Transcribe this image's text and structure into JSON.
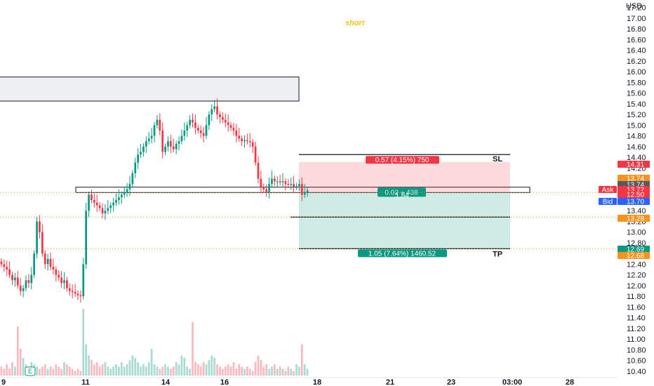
{
  "chart_data": {
    "type": "candlestick",
    "title": "short",
    "currency": "USD",
    "y_ticks": [
      "17.20",
      "17.00",
      "16.80",
      "16.60",
      "16.40",
      "16.20",
      "16.00",
      "15.80",
      "15.60",
      "15.40",
      "15.20",
      "15.00",
      "14.80",
      "14.60",
      "14.40",
      "14.20",
      "14.00",
      "13.80",
      "13.60",
      "13.40",
      "13.20",
      "13.00",
      "12.80",
      "12.60",
      "12.40",
      "12.20",
      "12.00",
      "11.80",
      "11.60",
      "11.40",
      "11.20",
      "11.00",
      "10.80",
      "10.60",
      "10.40"
    ],
    "ylim": [
      10.28,
      17.34
    ],
    "x_ticks": [
      "9",
      "11",
      "14",
      "16",
      "18",
      "21",
      "23",
      "03:00",
      "28"
    ],
    "price_tags": [
      {
        "value": "14.31",
        "color": "#f23645"
      },
      {
        "value": "13.74",
        "color": "#f7931a"
      },
      {
        "value": "13.74",
        "color": "#555b66"
      },
      {
        "value": "13.72",
        "color": "#f23645",
        "label": "Ask"
      },
      {
        "value": "12.50",
        "color": "#f23645"
      },
      {
        "value": "13.70",
        "color": "#2962ff",
        "label": "Bid"
      },
      {
        "value": "13.28",
        "color": "#f7931a"
      },
      {
        "value": "12.69",
        "color": "#089981"
      },
      {
        "value": "12.68",
        "color": "#f7931a"
      }
    ],
    "position": {
      "direction": "short",
      "entry": 13.74,
      "stop_loss": 14.31,
      "take_profit": 12.69,
      "stop_label": "SL",
      "target_label": "TP",
      "stop_text": "0.57 (4.15%) 750",
      "target_text": "1.05 (7.64%) 1460.52",
      "open_pl_text": "0.02",
      "open_pl_suffix": "438",
      "ratio_text": "1.84"
    },
    "horizontal_lines": [
      13.28
    ],
    "dotted_levels": [
      13.74,
      13.28,
      12.69
    ],
    "zones": [
      {
        "name": "supply",
        "low": 15.45,
        "high": 15.9
      },
      {
        "name": "entry",
        "low": 13.74,
        "high": 13.84
      }
    ],
    "series": [
      {
        "name": "price",
        "close": [
          12.4,
          12.35,
          12.3,
          12.2,
          12.1,
          12.15,
          12.0,
          11.9,
          11.95,
          12.1,
          12.05,
          12.2,
          12.6,
          13.2,
          13.0,
          12.6,
          12.4,
          12.5,
          12.35,
          12.3,
          12.2,
          12.15,
          12.05,
          12.1,
          11.95,
          11.9,
          11.88,
          11.85,
          11.82,
          11.8,
          12.4,
          13.4,
          13.7,
          13.6,
          13.55,
          13.5,
          13.45,
          13.35,
          13.4,
          13.45,
          13.5,
          13.55,
          13.6,
          13.65,
          13.7,
          13.75,
          13.8,
          13.9,
          14.1,
          14.3,
          14.45,
          14.5,
          14.6,
          14.7,
          14.75,
          14.8,
          15.0,
          15.1,
          14.9,
          14.5,
          14.6,
          14.7,
          14.6,
          14.55,
          14.65,
          14.7,
          14.8,
          14.9,
          15.0,
          15.1,
          15.05,
          14.95,
          14.9,
          14.85,
          14.8,
          15.0,
          15.2,
          15.3,
          15.35,
          15.2,
          15.15,
          15.1,
          15.05,
          15.0,
          14.95,
          14.9,
          14.8,
          14.75,
          14.7,
          14.72,
          14.7,
          14.68,
          14.6,
          14.3,
          14.0,
          13.85,
          13.8,
          13.75,
          13.9,
          14.0,
          13.95,
          13.95,
          13.93,
          13.95,
          13.9,
          13.88,
          13.9,
          13.85,
          13.86,
          13.9,
          13.7,
          13.75,
          13.78
        ]
      },
      {
        "name": "volume",
        "values": [
          4,
          3,
          5,
          3,
          6,
          4,
          22,
          12,
          8,
          5,
          4,
          6,
          5,
          4,
          3,
          4,
          5,
          3,
          4,
          3,
          5,
          4,
          3,
          6,
          5,
          4,
          3,
          2,
          3,
          2,
          30,
          14,
          9,
          7,
          5,
          6,
          4,
          5,
          6,
          4,
          3,
          4,
          5,
          4,
          6,
          4,
          5,
          7,
          9,
          8,
          6,
          4,
          5,
          4,
          6,
          12,
          5,
          4,
          3,
          4,
          5,
          4,
          3,
          4,
          6,
          5,
          9,
          8,
          4,
          3,
          24,
          6,
          5,
          4,
          6,
          5,
          7,
          9,
          8,
          5,
          4,
          3,
          4,
          5,
          4,
          6,
          3,
          5,
          4,
          3,
          4,
          3,
          2,
          6,
          9,
          7,
          4,
          5,
          3,
          4,
          5,
          3,
          4,
          3,
          2,
          4,
          3,
          2,
          5,
          4,
          14,
          5,
          3
        ]
      }
    ]
  }
}
